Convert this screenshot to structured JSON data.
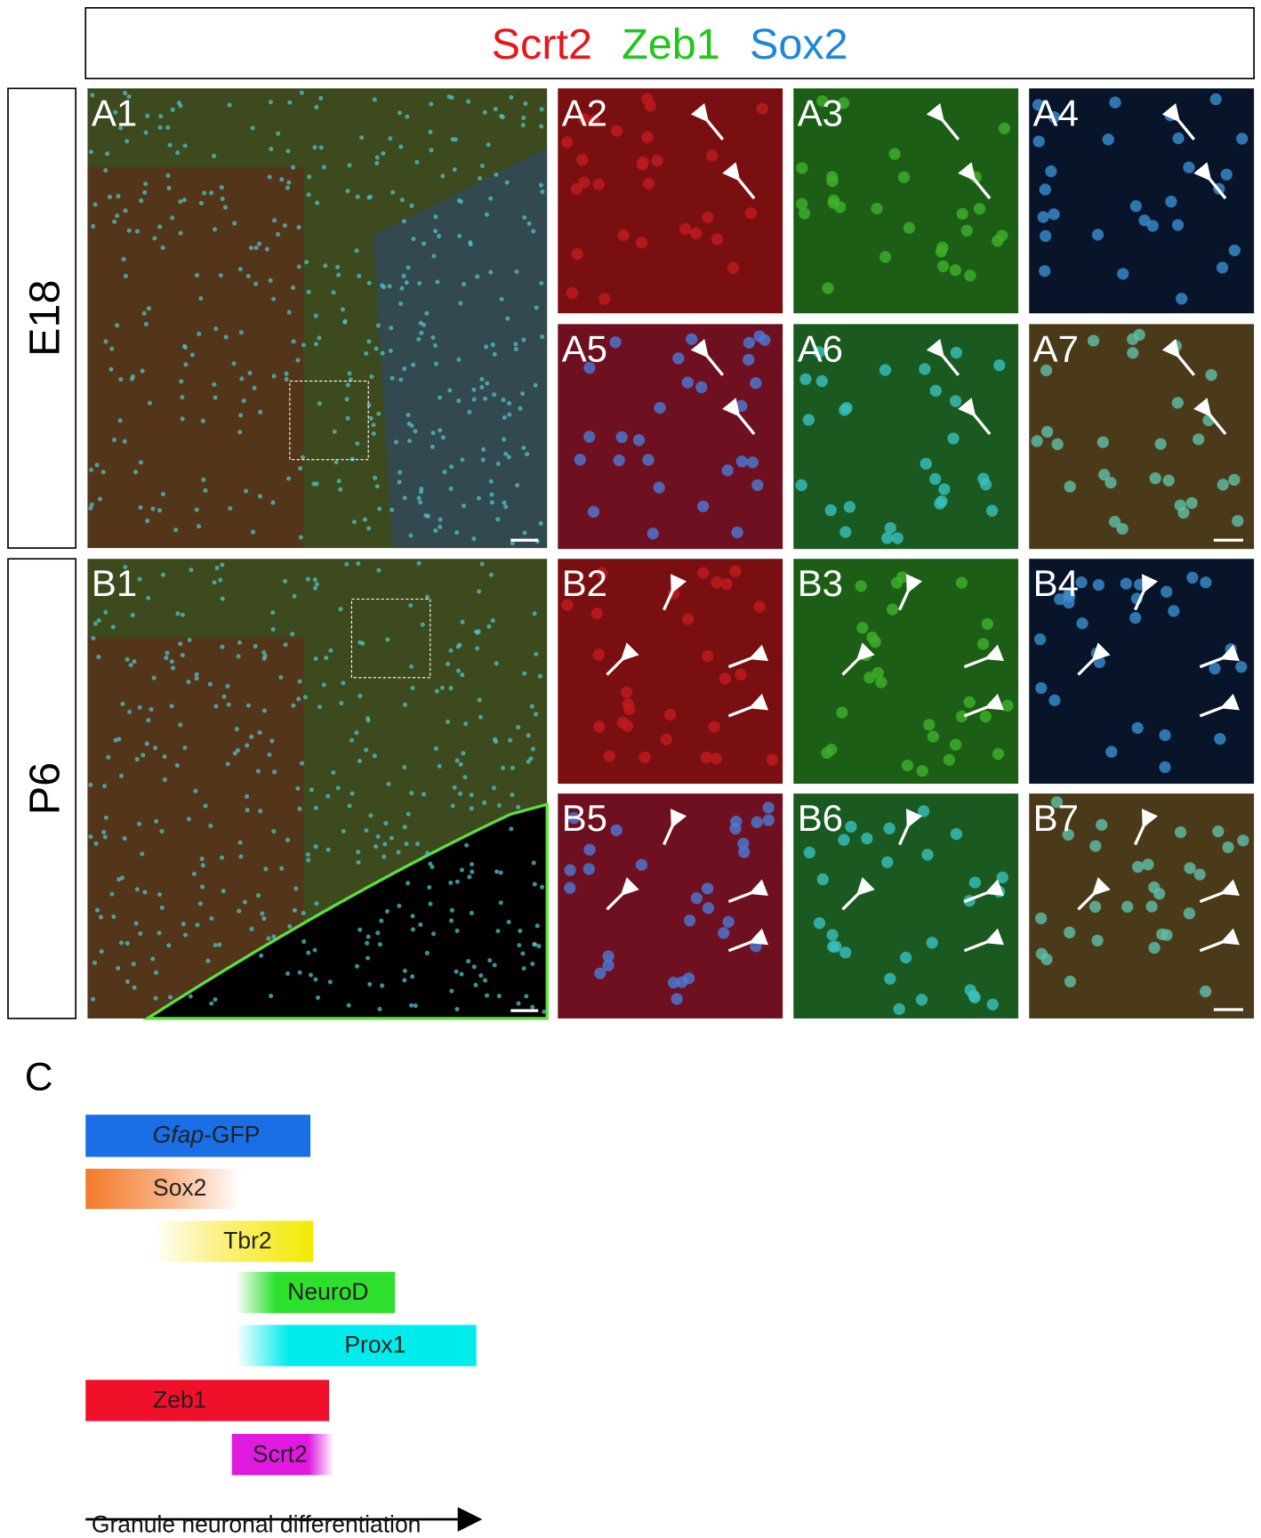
{
  "header": {
    "markers": [
      "Scrt2",
      "Zeb1",
      "Sox2"
    ]
  },
  "rows": [
    {
      "label": "E18",
      "panels": [
        "A1",
        "A2",
        "A3",
        "A4",
        "A5",
        "A6",
        "A7"
      ]
    },
    {
      "label": "P6",
      "panels": [
        "B1",
        "B2",
        "B3",
        "B4",
        "B5",
        "B6",
        "B7"
      ]
    }
  ],
  "section": {
    "label": "C",
    "bars": [
      {
        "label_italic": "Gfap",
        "label": "-GFP"
      },
      {
        "label": "Sox2"
      },
      {
        "label": "Tbr2"
      },
      {
        "label": "NeuroD"
      },
      {
        "label": "Prox1"
      },
      {
        "label": "Zeb1"
      },
      {
        "label": "Scrt2"
      }
    ],
    "axis_label": "Granule neuronal differentiation"
  }
}
